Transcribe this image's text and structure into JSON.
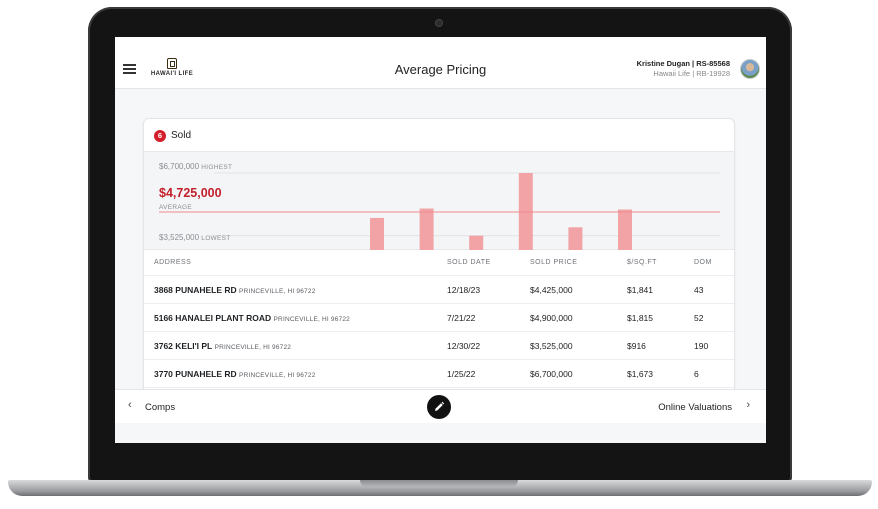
{
  "header": {
    "logo_text": "HAWAI'I LIFE",
    "title": "Average Pricing",
    "agent_name": "Kristine Dugan | RS-85568",
    "agent_brokerage": "Hawaii Life | RB-19928"
  },
  "card": {
    "count": "6",
    "title": "Sold"
  },
  "chart_data": {
    "type": "bar",
    "highest_value": "$6,700,000",
    "highest_label": "HIGHEST",
    "average_value": "$4,725,000",
    "average_label": "AVERAGE",
    "lowest_value": "$3,525,000",
    "lowest_label": "LOWEST",
    "values": [
      4425000,
      4900000,
      3525000,
      6700000,
      3950000,
      4850000
    ],
    "average": 4725000,
    "ylim": [
      2800000,
      6700000
    ],
    "bar_color": "#f2a3a6",
    "average_line_color": "#f08a8f"
  },
  "table": {
    "headers": {
      "address": "ADDRESS",
      "sold_date": "SOLD DATE",
      "sold_price": "SOLD PRICE",
      "price_sqft": "$/SQ.FT",
      "dom": "DOM"
    },
    "rows": [
      {
        "street": "3868 PUNAHELE RD",
        "city": "PRINCEVILLE, HI 96722",
        "date": "12/18/23",
        "price": "$4,425,000",
        "sqft": "$1,841",
        "dom": "43"
      },
      {
        "street": "5166 HANALEI PLANT ROAD",
        "city": "PRINCEVILLE, HI 96722",
        "date": "7/21/22",
        "price": "$4,900,000",
        "sqft": "$1,815",
        "dom": "52"
      },
      {
        "street": "3762 KELI'I PL",
        "city": "PRINCEVILLE, HI 96722",
        "date": "12/30/22",
        "price": "$3,525,000",
        "sqft": "$916",
        "dom": "190"
      },
      {
        "street": "3770 PUNAHELE RD",
        "city": "PRINCEVILLE, HI 96722",
        "date": "1/25/22",
        "price": "$6,700,000",
        "sqft": "$1,673",
        "dom": "6"
      }
    ]
  },
  "footer": {
    "prev_label": "Comps",
    "next_label": "Online Valuations",
    "prev_icon": "chevron-left-icon",
    "next_icon": "chevron-right-icon",
    "edit_icon": "pencil-icon"
  }
}
